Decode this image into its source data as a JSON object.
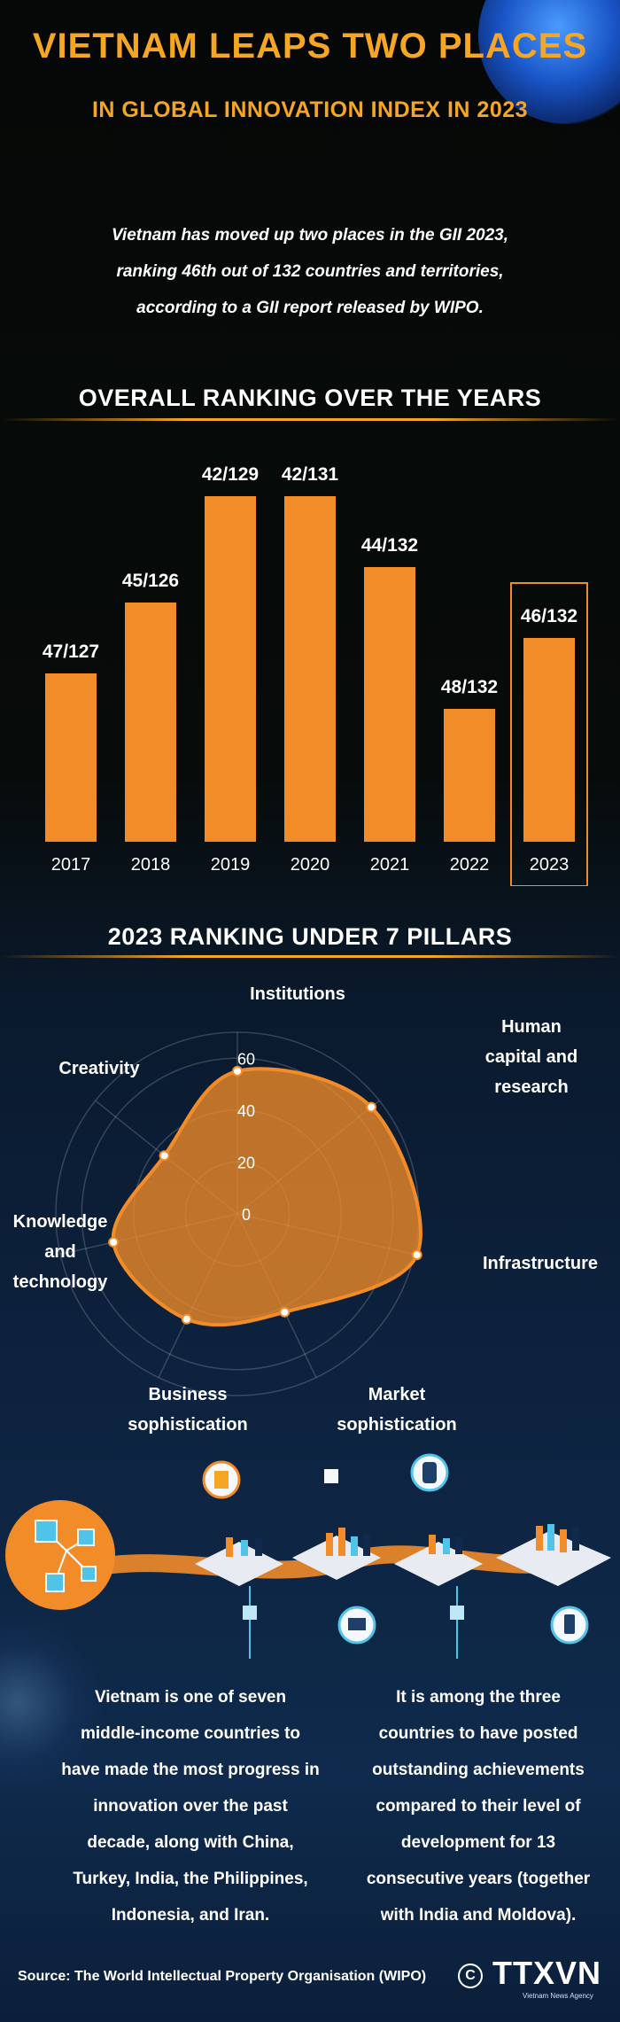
{
  "header": {
    "title": "VIETNAM LEAPS TWO PLACES",
    "subtitle": "IN GLOBAL INNOVATION INDEX IN 2023"
  },
  "intro": {
    "lines": [
      "Vietnam has moved up two places in the GII 2023,",
      "ranking 46th out of 132 countries and territories,",
      "according to a GII report released by WIPO."
    ]
  },
  "chart_data": [
    {
      "type": "bar",
      "title": "OVERALL RANKING OVER THE YEARS",
      "categories": [
        "2017",
        "2018",
        "2019",
        "2020",
        "2021",
        "2022",
        "2023"
      ],
      "values": [
        47,
        45,
        42,
        42,
        44,
        48,
        46
      ],
      "data_labels": [
        "47/127",
        "45/126",
        "42/129",
        "42/131",
        "44/132",
        "48/132",
        "46/132"
      ],
      "highlight": "2023",
      "color": "#f28c28"
    },
    {
      "type": "radar",
      "title": "2023 RANKING UNDER 7 PILLARS",
      "axes": [
        "Institutions",
        "Human capital and research",
        "Infrastructure",
        "Market sophistication",
        "Business sophistication",
        "Knowledge and technology",
        "Creativity"
      ],
      "values": [
        55,
        66,
        71,
        42,
        45,
        49,
        36
      ],
      "tick_labels": [
        "0",
        "20",
        "40",
        "60"
      ],
      "ylim": [
        0,
        70
      ],
      "color": "#f28c28"
    }
  ],
  "bottom": {
    "left_lines": [
      "Vietnam is one of seven",
      "middle-income countries to",
      "have made the most progress in",
      "innovation over the past",
      "decade, along with China,",
      "Turkey, India, the Philippines,",
      "Indonesia, and Iran."
    ],
    "right_lines": [
      "It is among the three",
      "countries to have posted",
      "outstanding achievements",
      "compared to their level of",
      "development for 13",
      "consecutive years (together",
      "with India and Moldova)."
    ]
  },
  "footer": {
    "source": "Source: The World Intellectual Property Organisation (WIPO)",
    "copyright": "C",
    "logo": "TTXVN",
    "logo_sub": "Vietnam News Agency"
  }
}
